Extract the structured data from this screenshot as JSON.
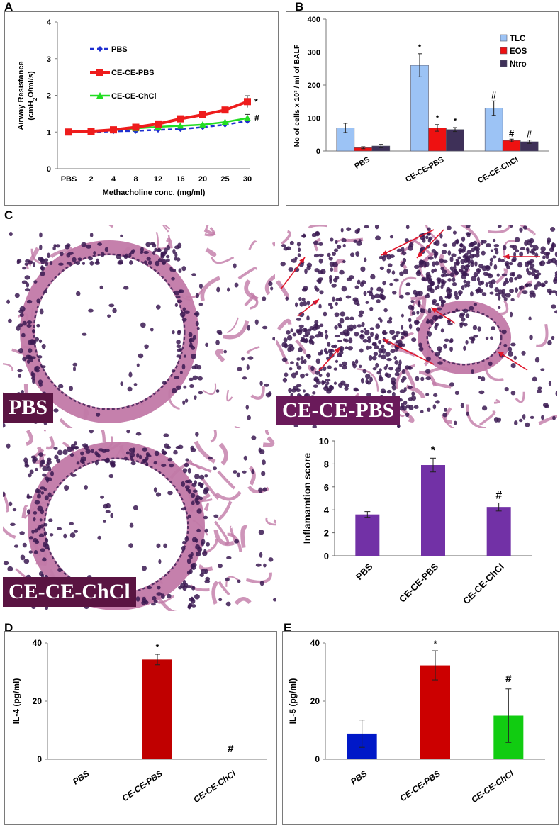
{
  "panels": {
    "a": "A",
    "b": "B",
    "c": "C",
    "d": "D",
    "e": "E"
  },
  "micrographs": {
    "pbs": "PBS",
    "ce_pbs": "CE-CE-PBS",
    "ce_chcl": "CE-CE-ChCl"
  },
  "colors": {
    "tissue_bg": "#f4e6ee",
    "tissue_pink": "#c27aa8",
    "nuclei": "#3b1a52",
    "arrow": "#e0162b"
  },
  "chart_data": [
    {
      "id": "A",
      "type": "line",
      "x": [
        "PBS",
        "2",
        "4",
        "8",
        "12",
        "16",
        "20",
        "25",
        "30"
      ],
      "xlabel": "Methacholine conc. (mg/ml)",
      "ylabel": "Airway Resistance (cmH2O/ml/s)",
      "ylim": [
        0,
        4
      ],
      "yticks": [
        "0",
        "1",
        "2",
        "3",
        "4"
      ],
      "legend": "top-left",
      "series": [
        {
          "name": "PBS",
          "color": "#1f2fd0",
          "marker": "diamond",
          "dash": true,
          "values": [
            1.0,
            1.0,
            1.02,
            1.03,
            1.06,
            1.08,
            1.13,
            1.2,
            1.3
          ],
          "err": [
            0,
            0,
            0,
            0,
            0,
            0,
            0,
            0,
            0.05
          ]
        },
        {
          "name": "CE-CE-PBS",
          "color": "#ee1c1c",
          "marker": "square",
          "dash": false,
          "values": [
            1.0,
            1.02,
            1.06,
            1.13,
            1.22,
            1.36,
            1.47,
            1.6,
            1.83
          ],
          "err": [
            0,
            0,
            0,
            0,
            0,
            0,
            0,
            0,
            0.16
          ]
        },
        {
          "name": "CE-CE-ChCl",
          "color": "#22dd22",
          "marker": "triangle",
          "dash": false,
          "values": [
            1.0,
            1.02,
            1.05,
            1.1,
            1.14,
            1.17,
            1.2,
            1.27,
            1.38
          ],
          "err": [
            0,
            0,
            0,
            0,
            0,
            0,
            0,
            0,
            0.1
          ]
        }
      ],
      "annotations": [
        {
          "text": "*",
          "series": 1
        },
        {
          "text": "#",
          "series": 2
        }
      ]
    },
    {
      "id": "B",
      "type": "bar",
      "categories": [
        "PBS",
        "CE-CE-PBS",
        "CE-CE-ChCl"
      ],
      "ylabel": "No of cells x 10³ / ml of BALF",
      "ylim": [
        0,
        400
      ],
      "yticks": [
        "0",
        "100",
        "200",
        "300",
        "400"
      ],
      "legend": "top-right",
      "series": [
        {
          "name": "TLC",
          "color": "#9cc3f5",
          "values": [
            70,
            260,
            130
          ],
          "err": [
            14,
            35,
            22
          ],
          "marks": [
            "",
            "*",
            "#"
          ]
        },
        {
          "name": "EOS",
          "color": "#ee1111",
          "values": [
            10,
            70,
            32
          ],
          "err": [
            3,
            10,
            4
          ],
          "marks": [
            "",
            "*",
            "#"
          ]
        },
        {
          "name": "Ntro",
          "color": "#3e3058",
          "values": [
            15,
            65,
            28
          ],
          "err": [
            5,
            6,
            5
          ],
          "marks": [
            "",
            "*",
            "#"
          ]
        }
      ]
    },
    {
      "id": "C-score",
      "type": "bar",
      "categories": [
        "PBS",
        "CE-CE-PBS",
        "CE-CE-ChCl"
      ],
      "ylabel": "Inflamamtion score",
      "ylim": [
        0,
        10
      ],
      "yticks": [
        "0",
        "2",
        "4",
        "6",
        "8",
        "10"
      ],
      "values": [
        3.6,
        7.9,
        4.25
      ],
      "err": [
        0.25,
        0.6,
        0.35
      ],
      "marks": [
        "",
        "*",
        "#"
      ],
      "color": "#7231a6"
    },
    {
      "id": "D",
      "type": "bar",
      "categories": [
        "PBS",
        "CE-CE-PBS",
        "CE-CE-ChCl"
      ],
      "ylabel": "IL-4 (pg/ml)",
      "ylim": [
        0,
        40
      ],
      "yticks": [
        "0",
        "20",
        "40"
      ],
      "values": [
        0,
        34.3,
        0
      ],
      "err": [
        0,
        1.8,
        0
      ],
      "marks": [
        "",
        "*",
        "#"
      ],
      "colors": [
        "#c00000",
        "#c00000",
        "#c00000"
      ]
    },
    {
      "id": "E",
      "type": "bar",
      "categories": [
        "PBS",
        "CE-CE-PBS",
        "CE-CE-ChCl"
      ],
      "ylabel": "IL-5 (pg/ml)",
      "ylim": [
        0,
        40
      ],
      "yticks": [
        "0",
        "20",
        "40"
      ],
      "values": [
        8.8,
        32.3,
        15.0
      ],
      "err": [
        4.7,
        5.0,
        9.2
      ],
      "marks": [
        "",
        "*",
        "#"
      ],
      "colors": [
        "#0018c8",
        "#cc0000",
        "#11cc11"
      ]
    }
  ]
}
